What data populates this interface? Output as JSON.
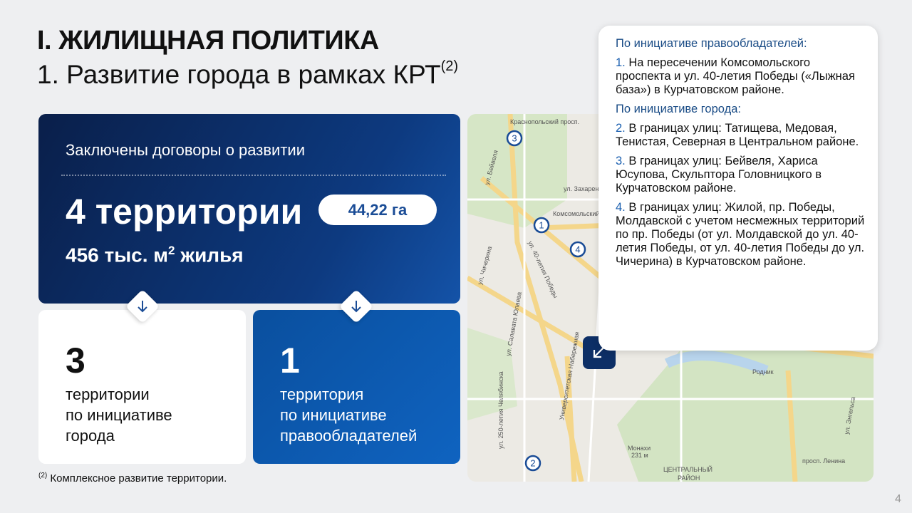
{
  "header": {
    "section": "I. ЖИЛИЩНАЯ ПОЛИТИКА",
    "title": "1. Развитие города в рамках КРТ",
    "title_note": "(2)"
  },
  "summary": {
    "caption": "Заключены договоры о развитии",
    "count": "4 территории",
    "area": "44,22 га",
    "housing_main": "456 тыс. м",
    "housing_sup": "2",
    "housing_rest": " жилья"
  },
  "cards": [
    {
      "number": "3",
      "lines": [
        "территории",
        "по инициативе",
        "города"
      ]
    },
    {
      "number": "1",
      "lines": [
        "территория",
        "по инициативе",
        "правообладателей"
      ]
    }
  ],
  "info": {
    "groups": [
      {
        "heading": "По инициативе правообладателей:",
        "items": [
          {
            "num": "1.",
            "text": "На пересечении Комсомольского проспекта и ул. 40-летия Победы («Лыжная база») в Курчатовском районе."
          }
        ]
      },
      {
        "heading": "По инициативе города:",
        "items": [
          {
            "num": "2.",
            "text": "В границах улиц: Татищева, Медовая, Тенистая, Северная в Центральном районе."
          },
          {
            "num": "3.",
            "text": "В границах улиц: Бейвеля, Хариса Юсупова, Скульптора Головницкого в Курчатовском районе."
          },
          {
            "num": "4.",
            "text": "В границах улиц: Жилой, пр. Победы, Молдавской с учетом несмежных территорий по пр. Победы (от ул. Молдавской до ул. 40-летия Победы, от ул. 40-летия Победы до ул. Чичерина) в Курчатовском районе."
          }
        ]
      }
    ]
  },
  "map": {
    "markers": [
      "1",
      "2",
      "3",
      "4"
    ],
    "labels": [
      "Краснопольский просп.",
      "ул. Бейвеля",
      "ул. Захарен",
      "Комсомольский",
      "ул. 40-летия Победы",
      "ул. Чичерина",
      "ул. Салавата Юлаева",
      "ул. 250-летия Челябинска",
      "Университетская Набережная",
      "Родник",
      "Монахи",
      "231 м",
      "просп. Ленина",
      "ЦЕНТРАЛЬНЫЙ",
      "РАЙОН",
      "ул. Энгельса"
    ]
  },
  "footnote": {
    "mark": "(2)",
    "text": "Комплексное развитие территории."
  },
  "page_number": "4"
}
